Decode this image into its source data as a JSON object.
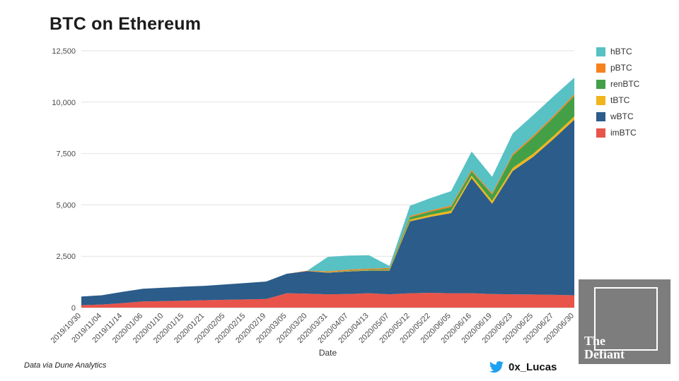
{
  "title": "BTC on Ethereum",
  "footer": {
    "source": "Data via Dune Analytics",
    "author": "0x_Lucas",
    "author_icon": "twitter-icon"
  },
  "logo": {
    "line1": "The",
    "line2": "Defiant",
    "bg_color": "#7d7d7d"
  },
  "colors": {
    "twitter": "#1da1f2",
    "gridline": "#e2e2e2",
    "baseline": "#c9c9c9"
  },
  "chart_data": {
    "type": "area",
    "stacked": true,
    "title": "BTC on Ethereum",
    "xlabel": "Date",
    "ylabel": "",
    "ylim": [
      0,
      12500
    ],
    "ytick_step": 2500,
    "grid": "horizontal",
    "legend_position": "right",
    "categories": [
      "2019/10/30",
      "2019/11/04",
      "2019/11/14",
      "2020/01/06",
      "2020/01/10",
      "2020/01/15",
      "2020/01/21",
      "2020/02/05",
      "2020/02/15",
      "2020/02/19",
      "2020/03/05",
      "2020/03/20",
      "2020/03/31",
      "2020/04/07",
      "2020/04/13",
      "2020/05/07",
      "2020/05/12",
      "2020/05/22",
      "2020/06/05",
      "2020/06/16",
      "2020/06/19",
      "2020/06/23",
      "2020/06/25",
      "2020/06/27",
      "2020/06/30"
    ],
    "series": [
      {
        "name": "imBTC",
        "color": "#e8544a",
        "values": [
          120,
          150,
          220,
          300,
          320,
          340,
          360,
          380,
          400,
          420,
          700,
          680,
          650,
          660,
          700,
          650,
          700,
          720,
          700,
          700,
          660,
          650,
          640,
          620,
          600
        ]
      },
      {
        "name": "wBTC",
        "color": "#2b5c8a",
        "values": [
          420,
          450,
          550,
          620,
          650,
          680,
          700,
          750,
          800,
          850,
          950,
          1100,
          1050,
          1100,
          1100,
          1150,
          3500,
          3700,
          3900,
          5600,
          4400,
          6000,
          6700,
          7600,
          8550
        ]
      },
      {
        "name": "tBTC",
        "color": "#f0b51e",
        "values": [
          0,
          0,
          0,
          0,
          0,
          0,
          0,
          0,
          0,
          0,
          0,
          0,
          20,
          20,
          20,
          30,
          80,
          100,
          120,
          130,
          140,
          150,
          150,
          150,
          160
        ]
      },
      {
        "name": "renBTC",
        "color": "#43a047",
        "values": [
          0,
          0,
          0,
          0,
          0,
          0,
          0,
          0,
          0,
          0,
          0,
          0,
          10,
          20,
          30,
          50,
          120,
          150,
          180,
          200,
          300,
          600,
          800,
          900,
          1000
        ]
      },
      {
        "name": "pBTC",
        "color": "#f5821f",
        "values": [
          0,
          0,
          0,
          0,
          0,
          0,
          0,
          0,
          0,
          0,
          0,
          20,
          40,
          50,
          50,
          50,
          60,
          60,
          70,
          70,
          70,
          80,
          80,
          80,
          80
        ]
      },
      {
        "name": "hBTC",
        "color": "#57c1c4",
        "values": [
          0,
          0,
          0,
          0,
          0,
          0,
          0,
          0,
          0,
          0,
          0,
          0,
          700,
          680,
          650,
          100,
          500,
          600,
          700,
          900,
          800,
          1000,
          1000,
          950,
          800
        ]
      }
    ]
  }
}
